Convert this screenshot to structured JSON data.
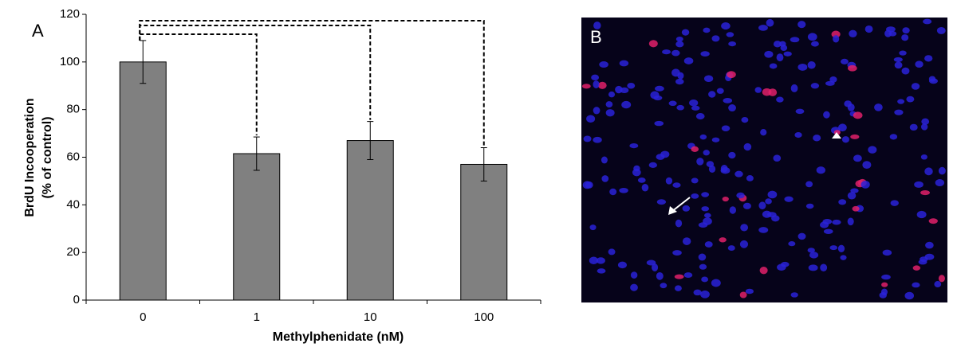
{
  "chart_data": {
    "type": "bar",
    "panel_label": "A",
    "categories": [
      "0",
      "1",
      "10",
      "100"
    ],
    "values": [
      100,
      61.5,
      67,
      57
    ],
    "errors": [
      9,
      7,
      8,
      7
    ],
    "color": "#808080",
    "ylim": [
      0,
      120
    ],
    "yticks": [
      0,
      20,
      40,
      60,
      80,
      100,
      120
    ],
    "xlabel": "Methylphenidate (nM)",
    "ylabel": [
      "BrdU Incooperation",
      "(% of control)"
    ]
  },
  "image_panel": {
    "label": "B"
  }
}
